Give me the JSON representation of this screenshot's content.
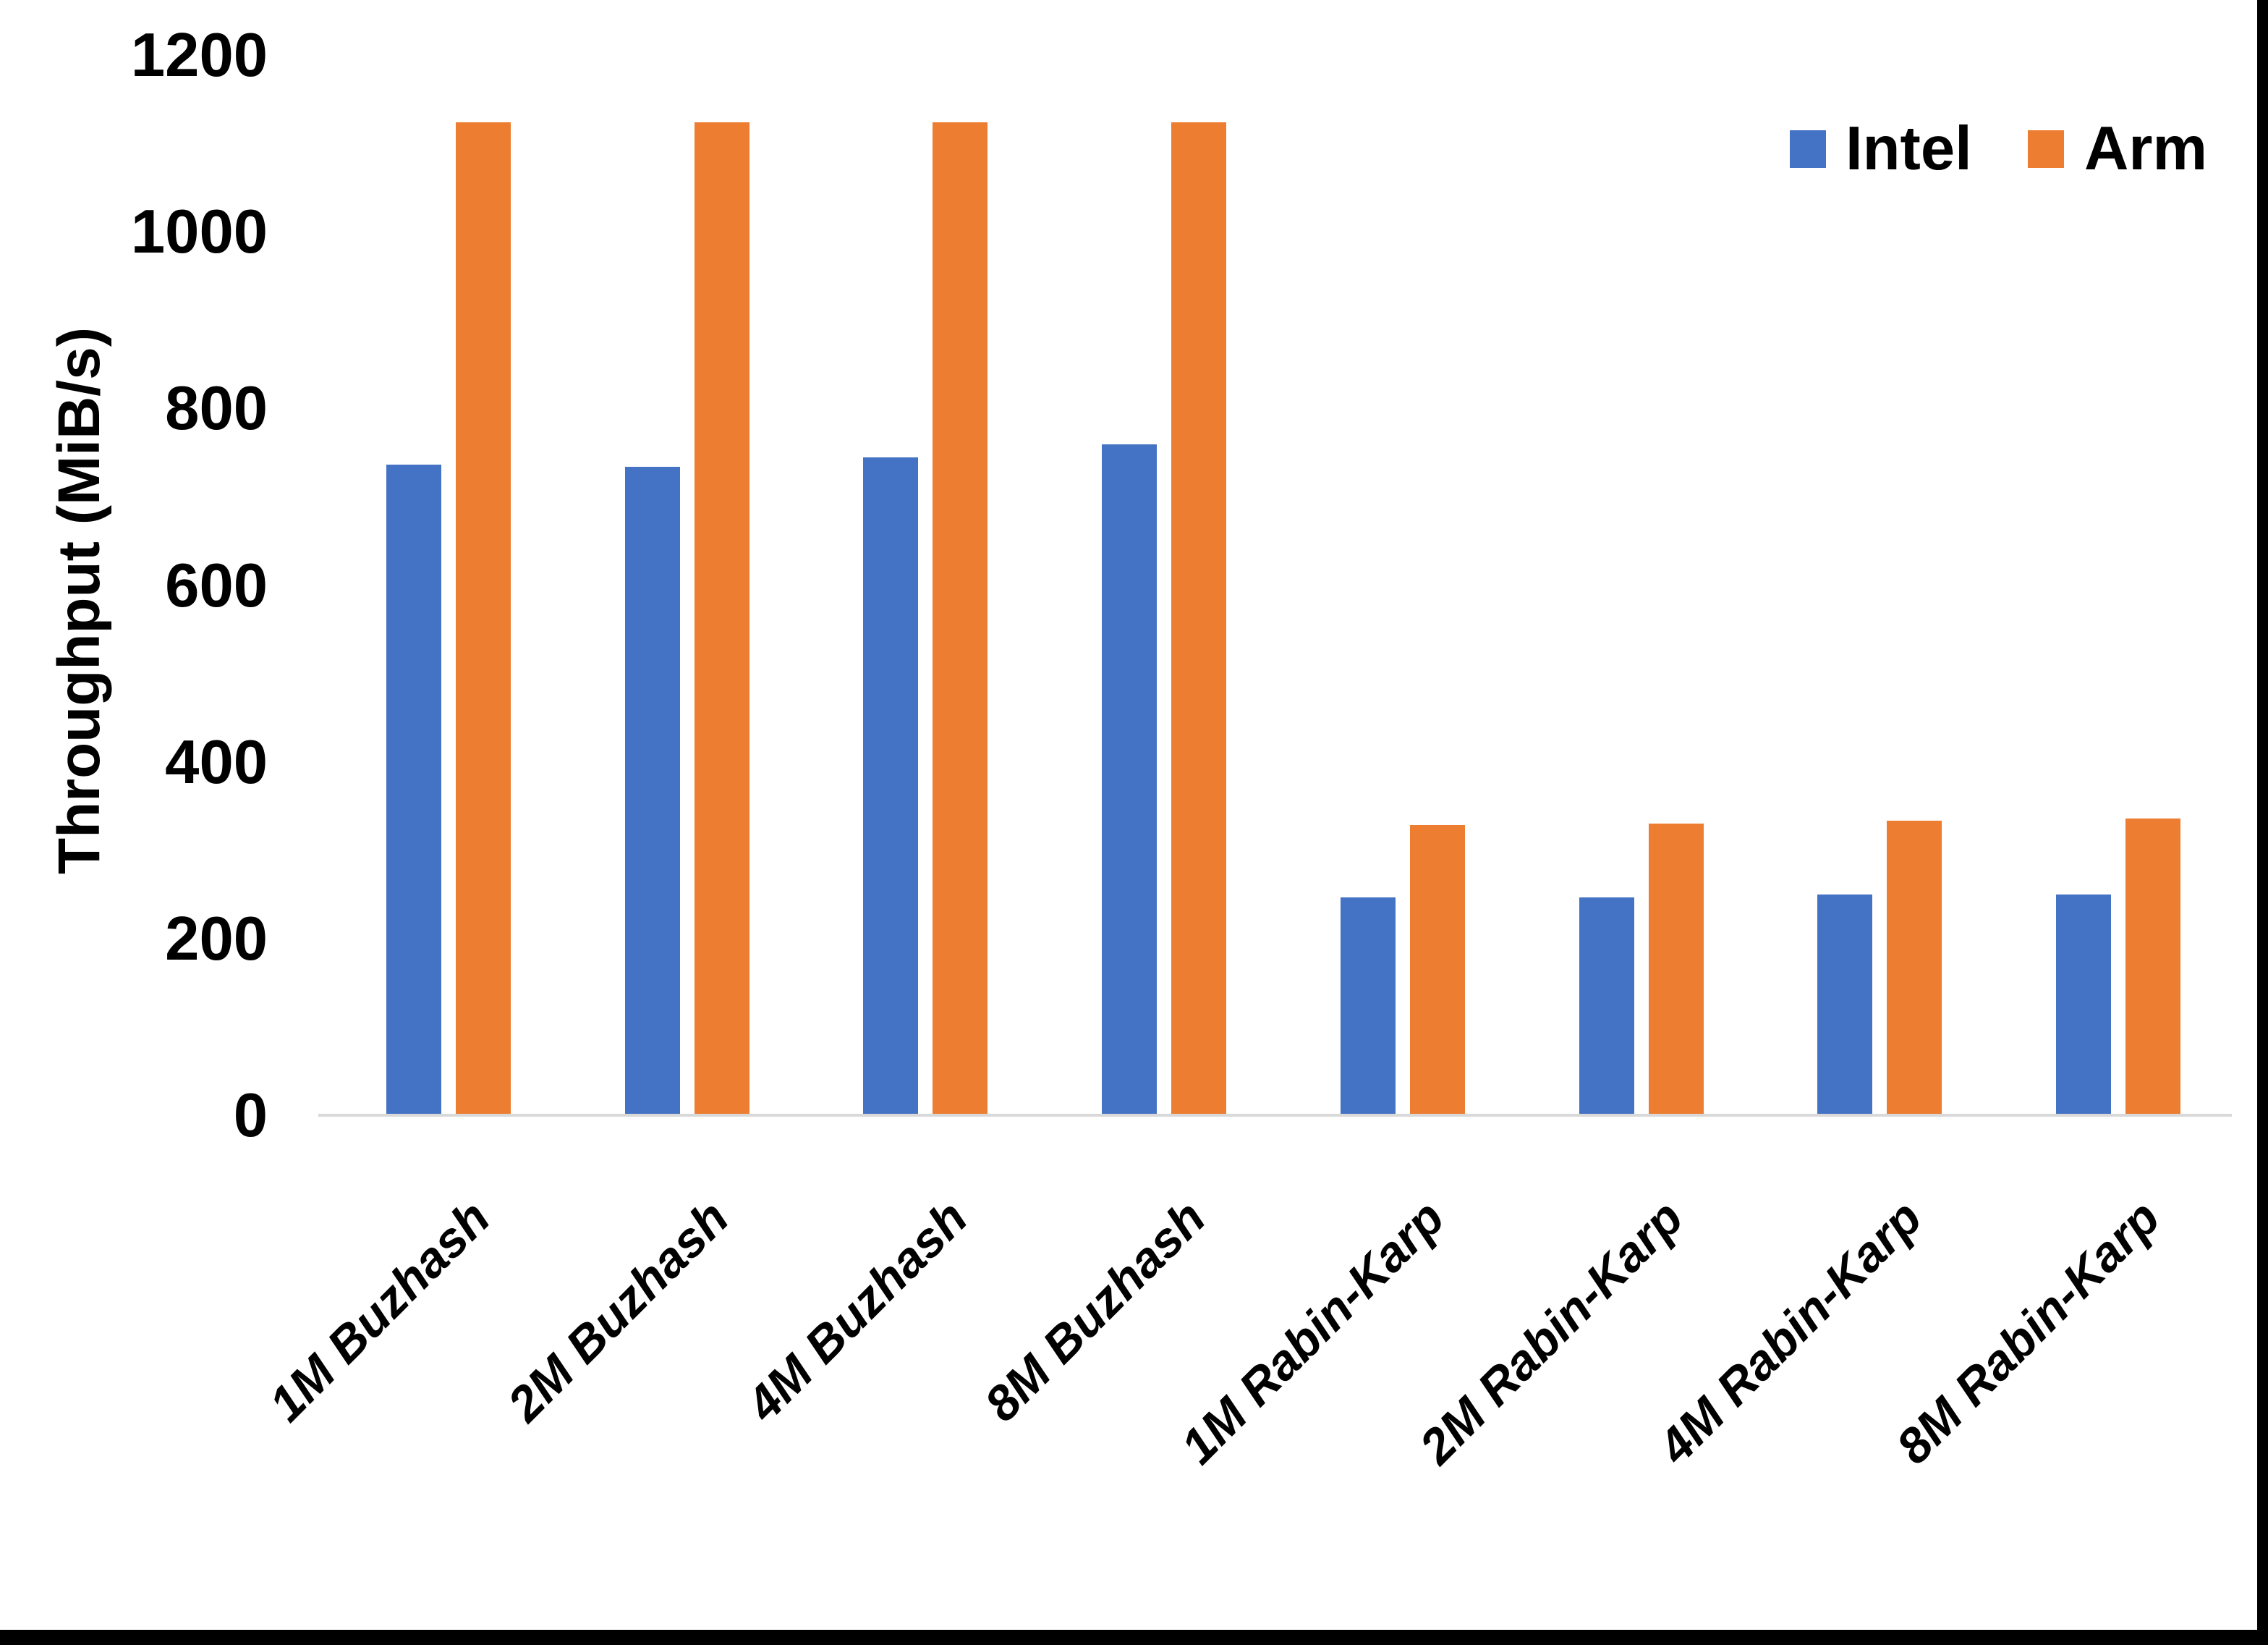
{
  "chart_data": {
    "type": "bar",
    "title": "",
    "xlabel": "",
    "ylabel": "Throughput (MiB/s)",
    "ylim": [
      0,
      1200
    ],
    "yticks": [
      0,
      200,
      400,
      600,
      800,
      1000,
      1200
    ],
    "grid": false,
    "legend_position": "top-right",
    "categories": [
      "1M Buzhash",
      "2M Buzhash",
      "4M Buzhash",
      "8M Buzhash",
      "1M Rabin-Karp",
      "2M Rabin-Karp",
      "4M Rabin-Karp",
      "8M Rabin-Karp"
    ],
    "series": [
      {
        "name": "Intel",
        "color": "#4472C4",
        "values": [
          737,
          735,
          745,
          760,
          247,
          247,
          251,
          251
        ]
      },
      {
        "name": "Arm",
        "color": "#ED7D31",
        "values": [
          1125,
          1125,
          1125,
          1125,
          329,
          331,
          334,
          337
        ]
      }
    ],
    "colors": {
      "axis_line": "#D9D9D9",
      "text": "#000000",
      "background": "#FFFFFF",
      "frame_border": "#000000"
    }
  }
}
